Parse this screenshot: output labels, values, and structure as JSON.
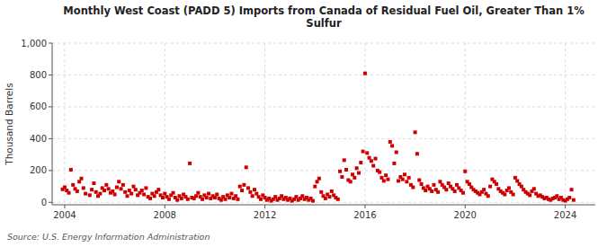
{
  "chart_data": {
    "type": "scatter",
    "title": "Monthly West Coast (PADD 5) Imports from Canada of Residual Fuel Oil, Greater Than 1%\nSulfur",
    "ylabel": "Thousand Barrels",
    "annotations": [
      "Source: U.S. Energy Information Administration"
    ],
    "color": "#cc0000",
    "marker": "square",
    "grid": true,
    "xlim": [
      2003.5,
      2025.2
    ],
    "ylim": [
      -15,
      1000
    ],
    "xticks": [
      2004,
      2008,
      2012,
      2016,
      2020,
      2024
    ],
    "yticks": [
      0,
      200,
      400,
      600,
      800,
      {
        "value": 1000,
        "label": "1,000"
      }
    ],
    "x": [
      2003.917,
      2004.0,
      2004.083,
      2004.167,
      2004.25,
      2004.333,
      2004.417,
      2004.5,
      2004.583,
      2004.667,
      2004.75,
      2004.833,
      2005.0,
      2005.083,
      2005.167,
      2005.25,
      2005.333,
      2005.417,
      2005.5,
      2005.583,
      2005.667,
      2005.75,
      2005.833,
      2005.917,
      2006.0,
      2006.083,
      2006.167,
      2006.25,
      2006.333,
      2006.417,
      2006.5,
      2006.583,
      2006.667,
      2006.75,
      2006.833,
      2006.917,
      2007.0,
      2007.083,
      2007.167,
      2007.25,
      2007.333,
      2007.417,
      2007.5,
      2007.583,
      2007.667,
      2007.75,
      2007.833,
      2007.917,
      2008.0,
      2008.083,
      2008.167,
      2008.25,
      2008.333,
      2008.417,
      2008.5,
      2008.583,
      2008.667,
      2008.75,
      2008.833,
      2008.917,
      2009.0,
      2009.083,
      2009.167,
      2009.25,
      2009.333,
      2009.417,
      2009.5,
      2009.583,
      2009.667,
      2009.75,
      2009.833,
      2009.917,
      2010.0,
      2010.083,
      2010.167,
      2010.25,
      2010.333,
      2010.417,
      2010.5,
      2010.583,
      2010.667,
      2010.75,
      2010.833,
      2010.917,
      2011.0,
      2011.083,
      2011.167,
      2011.25,
      2011.333,
      2011.417,
      2011.5,
      2011.583,
      2011.667,
      2011.75,
      2011.833,
      2011.917,
      2012.0,
      2012.083,
      2012.167,
      2012.25,
      2012.333,
      2012.417,
      2012.5,
      2012.583,
      2012.667,
      2012.75,
      2012.833,
      2012.917,
      2013.0,
      2013.083,
      2013.167,
      2013.25,
      2013.333,
      2013.417,
      2013.5,
      2013.583,
      2013.667,
      2013.75,
      2013.833,
      2013.917,
      2014.0,
      2014.083,
      2014.167,
      2014.25,
      2014.333,
      2014.417,
      2014.5,
      2014.583,
      2014.667,
      2014.75,
      2014.833,
      2014.917,
      2015.0,
      2015.083,
      2015.167,
      2015.25,
      2015.333,
      2015.417,
      2015.5,
      2015.583,
      2015.667,
      2015.75,
      2015.833,
      2015.917,
      2016.0,
      2016.083,
      2016.167,
      2016.25,
      2016.333,
      2016.417,
      2016.5,
      2016.583,
      2016.667,
      2016.75,
      2016.833,
      2016.917,
      2017.0,
      2017.083,
      2017.167,
      2017.25,
      2017.333,
      2017.417,
      2017.5,
      2017.583,
      2017.667,
      2017.75,
      2017.833,
      2017.917,
      2018.0,
      2018.083,
      2018.167,
      2018.25,
      2018.333,
      2018.417,
      2018.5,
      2018.583,
      2018.667,
      2018.75,
      2018.833,
      2018.917,
      2019.0,
      2019.083,
      2019.167,
      2019.25,
      2019.333,
      2019.417,
      2019.5,
      2019.583,
      2019.667,
      2019.75,
      2019.833,
      2019.917,
      2020.0,
      2020.083,
      2020.167,
      2020.25,
      2020.333,
      2020.417,
      2020.5,
      2020.583,
      2020.667,
      2020.75,
      2020.833,
      2020.917,
      2021.0,
      2021.083,
      2021.167,
      2021.25,
      2021.333,
      2021.417,
      2021.5,
      2021.583,
      2021.667,
      2021.75,
      2021.833,
      2021.917,
      2022.0,
      2022.083,
      2022.167,
      2022.25,
      2022.333,
      2022.417,
      2022.5,
      2022.583,
      2022.667,
      2022.75,
      2022.833,
      2022.917,
      2023.0,
      2023.083,
      2023.167,
      2023.25,
      2023.333,
      2023.417,
      2023.5,
      2023.583,
      2023.667,
      2023.75,
      2023.833,
      2023.917,
      2024.0,
      2024.083,
      2024.167,
      2024.25,
      2024.333
    ],
    "values": [
      82,
      95,
      75,
      60,
      205,
      110,
      85,
      70,
      130,
      150,
      90,
      55,
      45,
      80,
      120,
      65,
      40,
      55,
      90,
      75,
      110,
      85,
      60,
      70,
      50,
      95,
      130,
      85,
      110,
      65,
      40,
      75,
      55,
      100,
      80,
      45,
      60,
      75,
      50,
      90,
      35,
      25,
      55,
      40,
      65,
      80,
      45,
      30,
      55,
      35,
      20,
      45,
      60,
      30,
      15,
      40,
      25,
      50,
      35,
      20,
      245,
      30,
      25,
      40,
      60,
      35,
      20,
      45,
      30,
      55,
      25,
      40,
      30,
      50,
      25,
      15,
      35,
      20,
      45,
      30,
      55,
      25,
      40,
      20,
      100,
      75,
      110,
      220,
      90,
      65,
      40,
      80,
      55,
      35,
      20,
      45,
      30,
      15,
      25,
      10,
      20,
      35,
      15,
      25,
      40,
      20,
      30,
      15,
      25,
      10,
      20,
      35,
      15,
      25,
      40,
      20,
      30,
      15,
      25,
      10,
      100,
      130,
      150,
      65,
      40,
      25,
      50,
      35,
      70,
      45,
      30,
      20,
      195,
      160,
      265,
      205,
      140,
      130,
      175,
      155,
      215,
      185,
      250,
      320,
      810,
      310,
      280,
      260,
      230,
      275,
      200,
      190,
      155,
      135,
      170,
      145,
      380,
      355,
      245,
      315,
      135,
      160,
      145,
      175,
      130,
      155,
      110,
      95,
      440,
      305,
      140,
      115,
      90,
      75,
      100,
      85,
      70,
      110,
      80,
      65,
      130,
      110,
      95,
      80,
      120,
      100,
      85,
      70,
      110,
      90,
      75,
      60,
      195,
      130,
      115,
      95,
      80,
      70,
      60,
      50,
      65,
      80,
      55,
      40,
      100,
      145,
      130,
      115,
      85,
      70,
      60,
      50,
      75,
      90,
      65,
      50,
      155,
      135,
      115,
      100,
      80,
      65,
      55,
      45,
      70,
      85,
      55,
      40,
      45,
      35,
      25,
      30,
      20,
      15,
      25,
      30,
      40,
      20,
      30,
      15,
      10,
      20,
      30,
      80,
      15
    ]
  }
}
